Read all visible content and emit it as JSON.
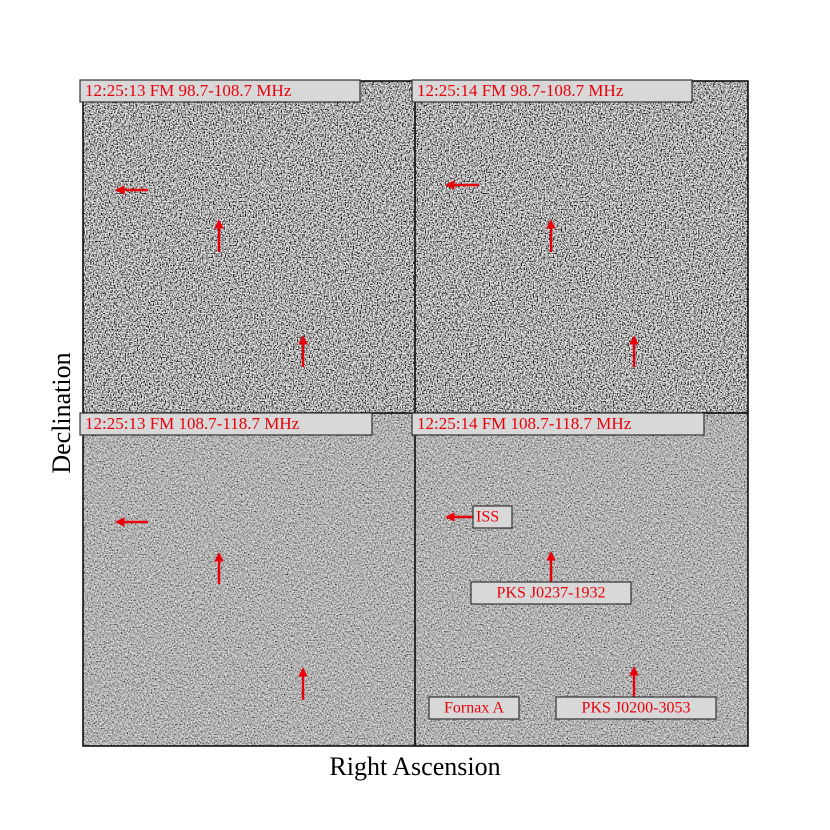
{
  "figure": {
    "x_label": "Right Ascension",
    "y_label": "Declination",
    "panels": [
      {
        "title": "12:25:13 FM 98.7-108.7 MHz"
      },
      {
        "title": "12:25:14 FM 98.7-108.7 MHz"
      },
      {
        "title": "12:25:13 FM 108.7-118.7 MHz"
      },
      {
        "title": "12:25:14 FM 108.7-118.7 MHz",
        "annotations": [
          "ISS",
          "PKS J0237-1932",
          "PKS J0200-3053",
          "Fornax A"
        ]
      }
    ]
  }
}
